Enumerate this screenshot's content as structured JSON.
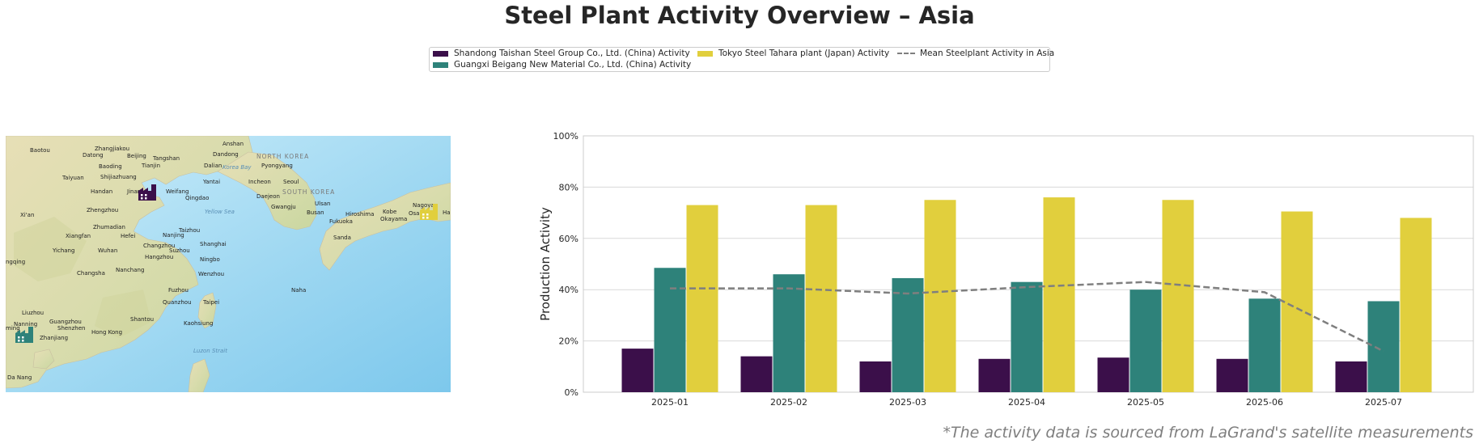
{
  "title": "Steel Plant Activity Overview – Asia",
  "footnote": "*The activity data is sourced from LaGrand's satellite measurements",
  "legend": {
    "items": [
      {
        "label": "Shandong Taishan Steel Group Co., Ltd. (China) Activity",
        "color": "#3b0f4a",
        "kind": "bar"
      },
      {
        "label": "Guangxi Beigang New Material Co., Ltd. (China) Activity",
        "color": "#2e827a",
        "kind": "bar"
      },
      {
        "label": "Tokyo Steel Tahara plant (Japan) Activity",
        "color": "#e1cf3d",
        "kind": "bar"
      },
      {
        "label": "Mean Steelplant Activity in Asia",
        "color": "#7f7f7f",
        "kind": "dashed-line"
      }
    ]
  },
  "map": {
    "labels": [
      {
        "text": "Baotou"
      },
      {
        "text": "Zhangjiakou"
      },
      {
        "text": "Anshan"
      },
      {
        "text": "Datong"
      },
      {
        "text": "Beijing"
      },
      {
        "text": "Tangshan"
      },
      {
        "text": "Dandong"
      },
      {
        "text": "NORTH KOREA"
      },
      {
        "text": "Baoding"
      },
      {
        "text": "Tianjin"
      },
      {
        "text": "Dalian"
      },
      {
        "text": "Pyongyang"
      },
      {
        "text": "Taiyuan"
      },
      {
        "text": "Shijiazhuang"
      },
      {
        "text": "Korea Bay"
      },
      {
        "text": "Yantai"
      },
      {
        "text": "Incheon"
      },
      {
        "text": "Seoul"
      },
      {
        "text": "Handan"
      },
      {
        "text": "Jinan"
      },
      {
        "text": "Weifang"
      },
      {
        "text": "SOUTH KOREA"
      },
      {
        "text": "Qingdao"
      },
      {
        "text": "Daejeon"
      },
      {
        "text": "Zhengzhou"
      },
      {
        "text": "Ulsan"
      },
      {
        "text": "Gwangju"
      },
      {
        "text": "Busan"
      },
      {
        "text": "Hiroshima"
      },
      {
        "text": "Kobe"
      },
      {
        "text": "Nagoya"
      },
      {
        "text": "Xi'an"
      },
      {
        "text": "Yellow Sea"
      },
      {
        "text": "Fukuoka"
      },
      {
        "text": "Okayama"
      },
      {
        "text": "Osaka"
      },
      {
        "text": "Ha"
      },
      {
        "text": "Zhumadian"
      },
      {
        "text": "Xiangfan"
      },
      {
        "text": "Hefei"
      },
      {
        "text": "Nanjing"
      },
      {
        "text": "Taizhou"
      },
      {
        "text": "Yichang"
      },
      {
        "text": "Wuhan"
      },
      {
        "text": "Changzhou"
      },
      {
        "text": "Suzhou"
      },
      {
        "text": "Shanghai"
      },
      {
        "text": "Hangzhou"
      },
      {
        "text": "Ningbo"
      },
      {
        "text": "Changsha"
      },
      {
        "text": "Nanchang"
      },
      {
        "text": "Wenzhou"
      },
      {
        "text": "Fuzhou"
      },
      {
        "text": "Naha"
      },
      {
        "text": "Quanzhou"
      },
      {
        "text": "Taipei"
      },
      {
        "text": "Liuzhou"
      },
      {
        "text": "Guangzhou"
      },
      {
        "text": "Shantou"
      },
      {
        "text": "Nanning"
      },
      {
        "text": "Shenzhen"
      },
      {
        "text": "Hong Kong"
      },
      {
        "text": "Kaohsiung"
      },
      {
        "text": "Zhanjiang"
      },
      {
        "text": "Luzon Strait"
      },
      {
        "text": "Da Nang"
      },
      {
        "text": "ngqing"
      },
      {
        "text": "ming"
      },
      {
        "text": "Sanda"
      }
    ],
    "markers": [
      {
        "name": "Shandong Taishan Steel Group",
        "color": "#3b0f4a",
        "icon": "factory-icon"
      },
      {
        "name": "Guangxi Beigang New Material",
        "color": "#2e827a",
        "icon": "factory-icon"
      },
      {
        "name": "Tokyo Steel Tahara plant",
        "color": "#e1cf3d",
        "icon": "factory-icon"
      }
    ]
  },
  "chart_data": {
    "type": "bar",
    "title": "",
    "xlabel": "",
    "ylabel": "Production Activity",
    "categories": [
      "2025-01",
      "2025-02",
      "2025-03",
      "2025-04",
      "2025-05",
      "2025-06",
      "2025-07"
    ],
    "ylim": [
      0,
      100
    ],
    "yticks": [
      "0%",
      "20%",
      "40%",
      "60%",
      "80%",
      "100%"
    ],
    "grid": true,
    "series": [
      {
        "name": "Shandong Taishan Steel Group Co., Ltd. (China) Activity",
        "color": "#3b0f4a",
        "values": [
          17,
          14,
          12,
          13,
          13.5,
          13,
          12
        ]
      },
      {
        "name": "Guangxi Beigang New Material Co., Ltd. (China) Activity",
        "color": "#2e827a",
        "values": [
          48.5,
          46,
          44.5,
          43,
          40,
          36.5,
          35.5
        ]
      },
      {
        "name": "Tokyo Steel Tahara plant (Japan) Activity",
        "color": "#e1cf3d",
        "values": [
          73,
          73,
          75,
          76,
          75,
          70.5,
          68
        ]
      }
    ],
    "mean_line": {
      "name": "Mean Steelplant Activity in Asia",
      "color": "#7f7f7f",
      "style": "dashed",
      "values": [
        40.5,
        40.5,
        38.5,
        41,
        43,
        39,
        16
      ]
    }
  }
}
